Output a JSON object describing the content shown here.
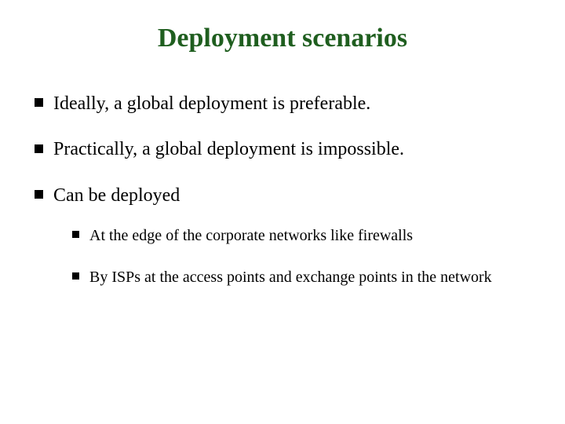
{
  "slide": {
    "title": "Deployment scenarios",
    "title_color": "#1f5e1f",
    "bullets": [
      {
        "text": "Ideally, a global deployment is preferable."
      },
      {
        "text": "Practically, a global deployment is impossible."
      },
      {
        "text": "Can be deployed",
        "sub": [
          {
            "text": "At the edge of the corporate networks like firewalls"
          },
          {
            "text": "By ISPs at the access points and exchange points in the network"
          }
        ]
      }
    ],
    "style": {
      "background_color": "#ffffff",
      "text_color": "#000000",
      "title_fontsize_pt": 26,
      "body_fontsize_pt": 18,
      "sub_fontsize_pt": 15,
      "bullet_marker": "square",
      "bullet_color": "#000000",
      "font_family": "Times New Roman"
    }
  }
}
